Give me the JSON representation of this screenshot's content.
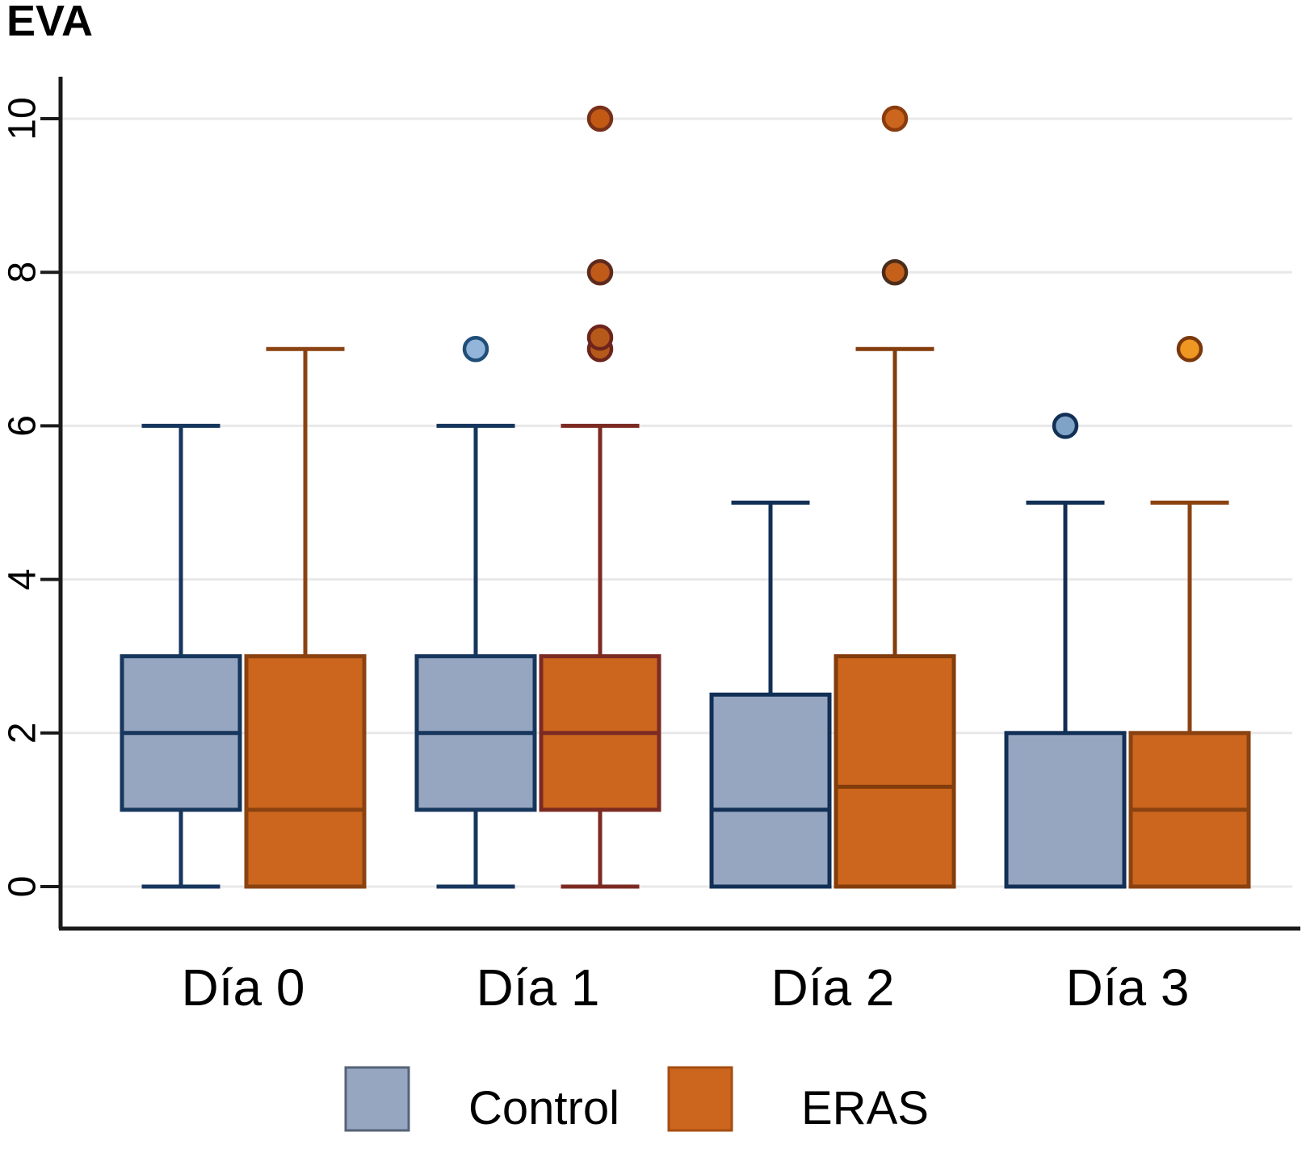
{
  "title": "EVA",
  "colors": {
    "background": "#ffffff",
    "axis": "#1a1a1a",
    "gridline": "#e8e8e8",
    "control_fill": "#96a6c0",
    "eras_fill": "#cc661e"
  },
  "legend": {
    "entries": [
      {
        "label": "Control",
        "fill": "#96a6c0",
        "stroke": "#566377"
      },
      {
        "label": "ERAS",
        "fill": "#cc661e",
        "stroke": "#a64d12"
      }
    ]
  },
  "chart_data": {
    "type": "box",
    "title": "EVA",
    "categories": [
      "Día 0",
      "Día 1",
      "Día 2",
      "Día 3"
    ],
    "yticks": [
      0,
      2,
      4,
      6,
      8,
      10
    ],
    "ytick_labels": [
      "0",
      "2",
      "4",
      "6",
      "8",
      "10"
    ],
    "ylim": [
      0,
      10
    ],
    "grid": true,
    "legend_position": "bottom",
    "series": [
      {
        "name": "Control",
        "fill": "#96a6c0",
        "boxes": [
          {
            "category": "Día 0",
            "whisker_low": 0,
            "q1": 1,
            "median": 2,
            "q3": 3,
            "whisker_high": 6,
            "stroke": "#17365d",
            "outliers": []
          },
          {
            "category": "Día 1",
            "whisker_low": 0,
            "q1": 1,
            "median": 2,
            "q3": 3,
            "whisker_high": 6,
            "stroke": "#17365d",
            "outliers": [
              {
                "value": 7,
                "fill": "#93b5da",
                "stroke": "#1f4e79"
              }
            ]
          },
          {
            "category": "Día 2",
            "whisker_low": 0,
            "q1": 0,
            "median": 1,
            "q3": 2.5,
            "whisker_high": 5,
            "stroke": "#122f55",
            "outliers": []
          },
          {
            "category": "Día 3",
            "whisker_low": 0,
            "q1": 0,
            "median": 0,
            "q3": 2,
            "whisker_high": 5,
            "stroke": "#122f55",
            "outliers": [
              {
                "value": 6,
                "fill": "#7fa3c6",
                "stroke": "#122f55"
              }
            ]
          }
        ]
      },
      {
        "name": "ERAS",
        "fill": "#cc661e",
        "boxes": [
          {
            "category": "Día 0",
            "whisker_low": 0,
            "q1": 0,
            "median": 1,
            "q3": 3,
            "whisker_high": 7,
            "stroke": "#8a4210",
            "outliers": []
          },
          {
            "category": "Día 1",
            "whisker_low": 0,
            "q1": 1,
            "median": 2,
            "q3": 3,
            "whisker_high": 6,
            "stroke": "#7c2b22",
            "outliers": [
              {
                "value": 7,
                "fill": "#b65a1b",
                "stroke": "#6d241c"
              },
              {
                "value": 7.15,
                "fill": "#b65a1b",
                "stroke": "#6d241c"
              },
              {
                "value": 8,
                "fill": "#c05a18",
                "stroke": "#5e2a1e"
              },
              {
                "value": 10,
                "fill": "#c25a16",
                "stroke": "#77301a"
              }
            ]
          },
          {
            "category": "Día 2",
            "whisker_low": 0,
            "q1": 0,
            "median": 1.3,
            "q3": 3,
            "whisker_high": 7,
            "stroke": "#833c0c",
            "outliers": [
              {
                "value": 8,
                "fill": "#c5601a",
                "stroke": "#4a2d1a"
              },
              {
                "value": 10,
                "fill": "#cc661e",
                "stroke": "#8a3c0c"
              }
            ]
          },
          {
            "category": "Día 3",
            "whisker_low": 0,
            "q1": 0,
            "median": 1,
            "q3": 2,
            "whisker_high": 5,
            "stroke": "#8a4210",
            "outliers": [
              {
                "value": 7,
                "fill": "#ee9722",
                "stroke": "#7a380c"
              }
            ]
          }
        ]
      }
    ]
  }
}
